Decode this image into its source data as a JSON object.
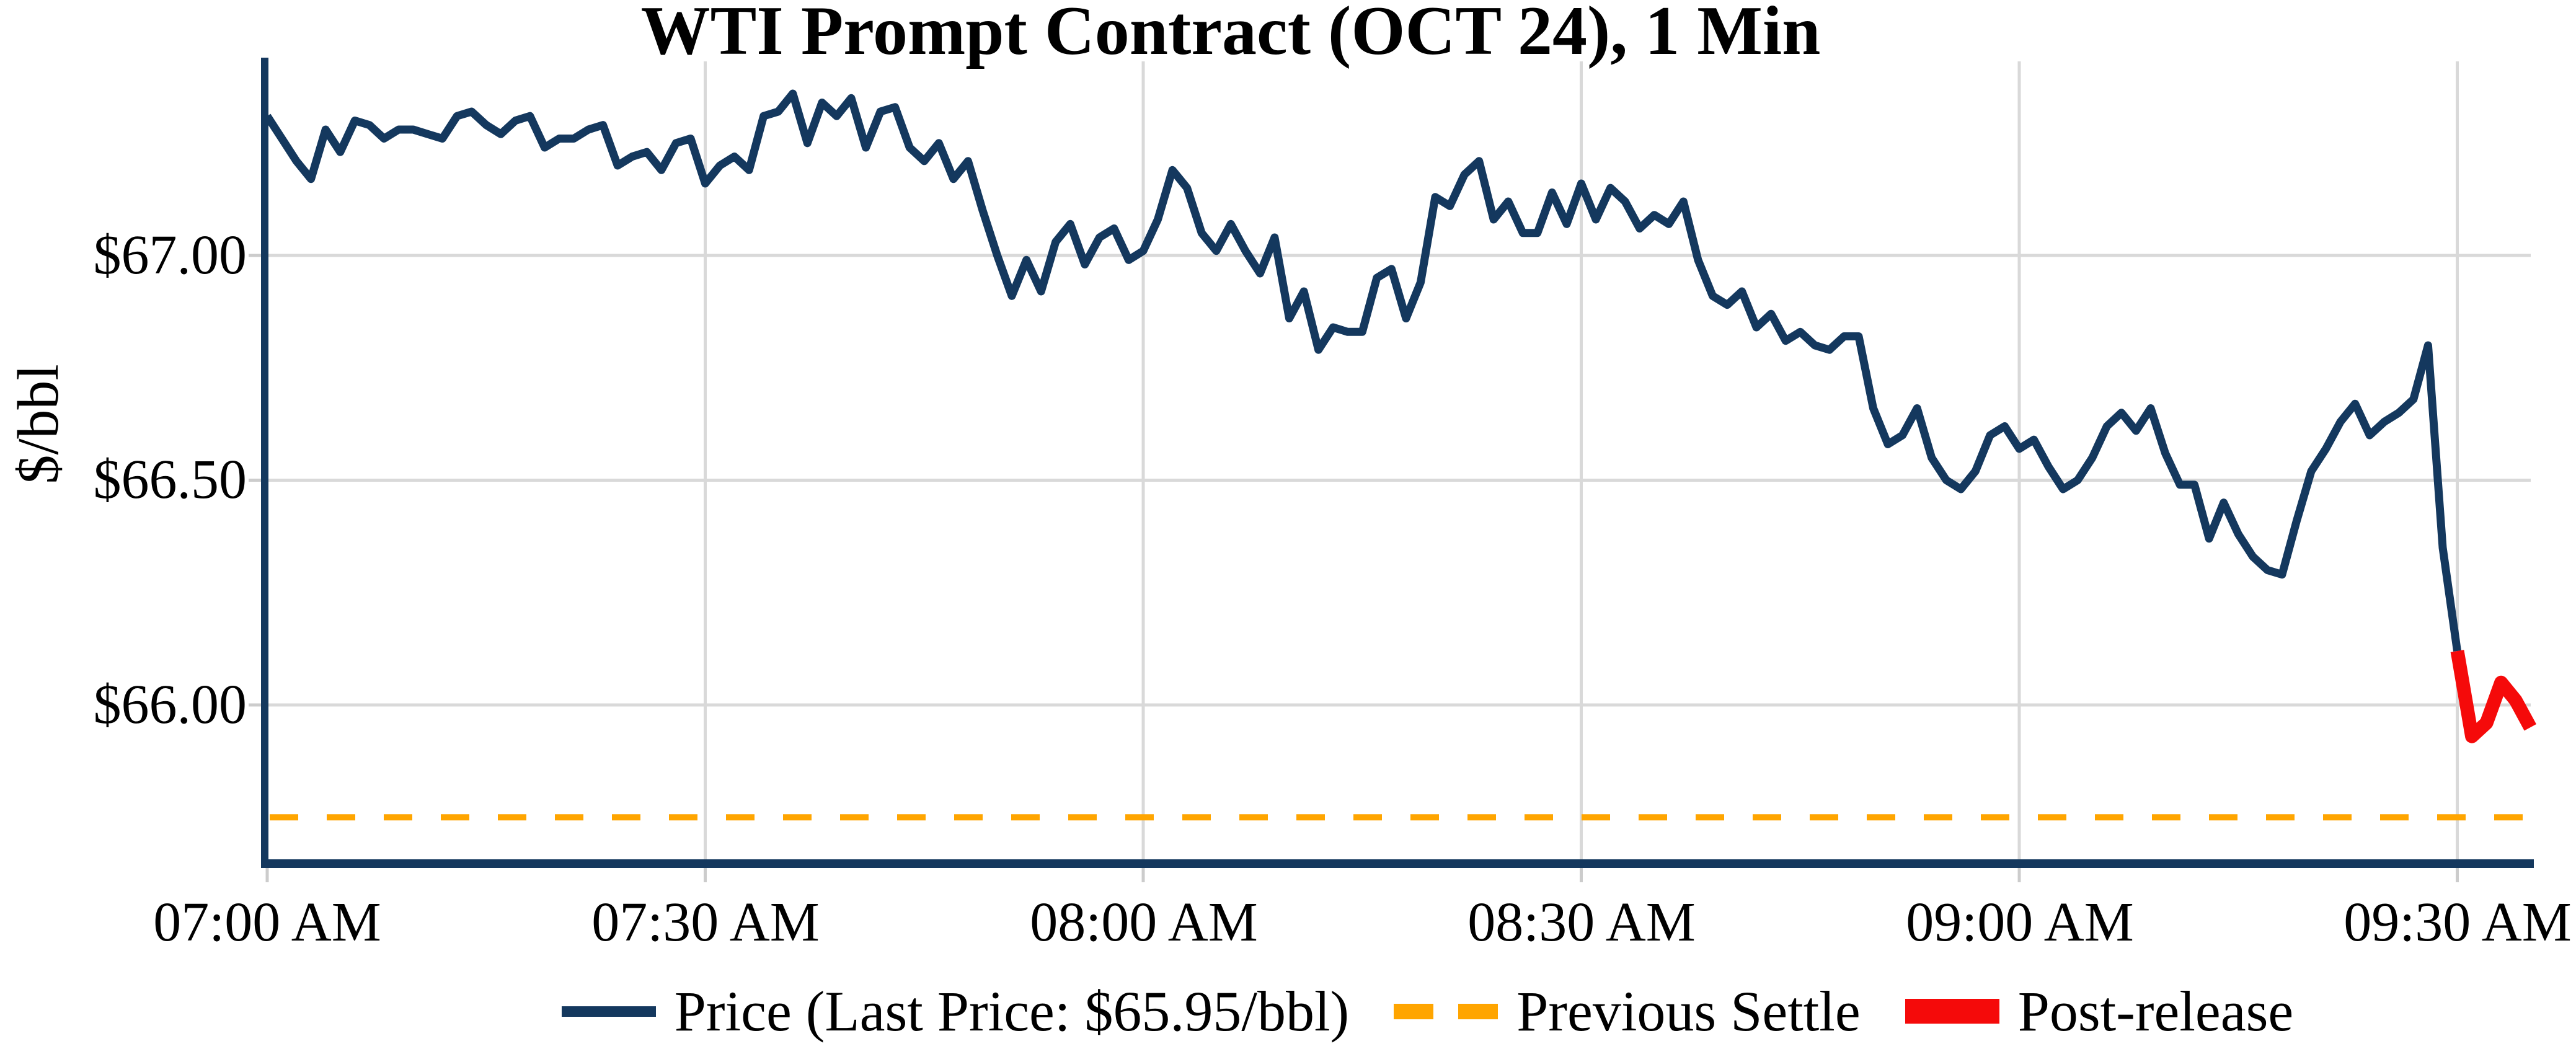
{
  "title": "WTI Prompt Contract (OCT 24), 1 Min",
  "colors": {
    "price_line": "#14385e",
    "post_release_line": "#f50a0a",
    "previous_settle_line": "#ffa500",
    "grid": "#d9d9d9",
    "tick_stub": "#cccccc",
    "axis_spine": "#14385e",
    "text": "#000000",
    "background": "#ffffff"
  },
  "y_axis": {
    "label": "$/bbl",
    "ticks": [
      "$67.00",
      "$66.50",
      "$66.00"
    ]
  },
  "x_axis": {
    "ticks": [
      "07:00 AM",
      "07:30 AM",
      "08:00 AM",
      "08:30 AM",
      "09:00 AM",
      "09:30 AM"
    ]
  },
  "legend": {
    "items": [
      {
        "label": "Price (Last Price: $65.95/bbl)",
        "swatch": "navy-solid-line"
      },
      {
        "label": "Previous Settle",
        "swatch": "orange-dashed-line"
      },
      {
        "label": "Post-release",
        "swatch": "red-thick-line"
      }
    ]
  },
  "chart_data": {
    "type": "line",
    "title": "WTI Prompt Contract (OCT 24), 1 Min",
    "xlabel": "",
    "ylabel": "$/bbl",
    "x_unit": "minutes since 07:00 AM (1-minute intervals)",
    "x_tick_labels": [
      "07:00 AM",
      "07:30 AM",
      "08:00 AM",
      "08:30 AM",
      "09:00 AM",
      "09:30 AM"
    ],
    "x_tick_minutes": [
      0,
      30,
      60,
      90,
      120,
      150
    ],
    "x_gridline_minutes": [
      30,
      60,
      90,
      120,
      150
    ],
    "y_tick_labels": [
      "$67.00",
      "$66.50",
      "$66.00"
    ],
    "y_tick_values": [
      67.0,
      66.5,
      66.0
    ],
    "ylim": [
      65.65,
      67.45
    ],
    "xlim_minutes": [
      0,
      155
    ],
    "grid": true,
    "legend_position": "bottom-center",
    "last_price": "$65.95/bbl",
    "series": [
      {
        "name": "Price (Last Price: $65.95/bbl)",
        "style": "solid",
        "color": "#14385e",
        "x_start_minute": 0,
        "values": [
          67.31,
          67.26,
          67.21,
          67.17,
          67.28,
          67.23,
          67.3,
          67.29,
          67.26,
          67.28,
          67.28,
          67.27,
          67.26,
          67.31,
          67.32,
          67.29,
          67.27,
          67.3,
          67.31,
          67.24,
          67.26,
          67.26,
          67.28,
          67.29,
          67.2,
          67.22,
          67.23,
          67.19,
          67.25,
          67.26,
          67.16,
          67.2,
          67.22,
          67.19,
          67.31,
          67.32,
          67.36,
          67.25,
          67.34,
          67.31,
          67.35,
          67.24,
          67.32,
          67.33,
          67.24,
          67.21,
          67.25,
          67.17,
          67.21,
          67.1,
          67.0,
          66.91,
          66.99,
          66.92,
          67.03,
          67.07,
          66.98,
          67.04,
          67.06,
          66.99,
          67.01,
          67.08,
          67.19,
          67.15,
          67.05,
          67.01,
          67.07,
          67.01,
          66.96,
          67.04,
          66.86,
          66.92,
          66.79,
          66.84,
          66.83,
          66.83,
          66.95,
          66.97,
          66.86,
          66.94,
          67.13,
          67.11,
          67.18,
          67.21,
          67.08,
          67.12,
          67.05,
          67.05,
          67.14,
          67.07,
          67.16,
          67.08,
          67.15,
          67.12,
          67.06,
          67.09,
          67.07,
          67.12,
          66.99,
          66.91,
          66.89,
          66.92,
          66.84,
          66.87,
          66.81,
          66.83,
          66.8,
          66.79,
          66.82,
          66.82,
          66.66,
          66.58,
          66.6,
          66.66,
          66.55,
          66.5,
          66.48,
          66.52,
          66.6,
          66.62,
          66.57,
          66.59,
          66.53,
          66.48,
          66.5,
          66.55,
          66.62,
          66.65,
          66.61,
          66.66,
          66.56,
          66.49,
          66.49,
          66.37,
          66.45,
          66.38,
          66.33,
          66.3,
          66.29,
          66.41,
          66.52,
          66.57,
          66.63,
          66.67,
          66.6,
          66.63,
          66.65,
          66.68,
          66.8,
          66.35,
          66.12
        ]
      },
      {
        "name": "Post-release",
        "style": "solid",
        "color": "#f50a0a",
        "x_start_minute": 150,
        "values": [
          66.12,
          65.93,
          65.96,
          66.05,
          66.01,
          65.95
        ]
      },
      {
        "name": "Previous Settle",
        "style": "dashed",
        "color": "#ffa500",
        "value": 65.75
      }
    ]
  }
}
